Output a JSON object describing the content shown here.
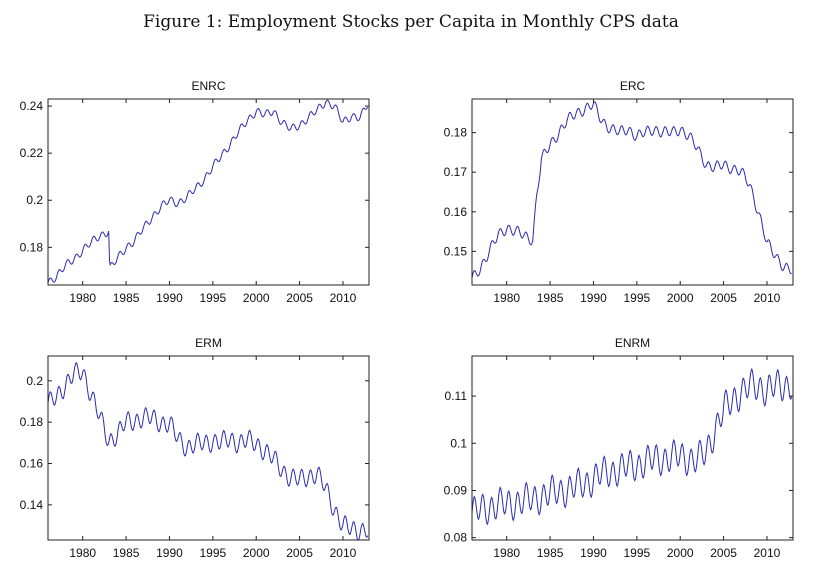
{
  "figure": {
    "title": "Figure 1: Employment Stocks per Capita in Monthly CPS data"
  },
  "chart_data": [
    {
      "type": "line",
      "title": "ENRC",
      "xlabel": "",
      "ylabel": "",
      "xlim": [
        1976,
        2013
      ],
      "ylim": [
        0.164,
        0.243
      ],
      "xticks": [
        1980,
        1985,
        1990,
        1995,
        2000,
        2005,
        2010
      ],
      "yticks": [
        0.18,
        0.2,
        0.22,
        0.24
      ],
      "ytick_labels": [
        "0.18",
        "0.2",
        "0.22",
        "0.24"
      ],
      "grid": false,
      "series": [
        {
          "color": "#2b2bb0",
          "x": [
            1976,
            1977,
            1978,
            1979,
            1980,
            1981,
            1982,
            1983,
            1983.1,
            1984,
            1985,
            1986,
            1987,
            1988,
            1989,
            1990,
            1991,
            1992,
            1993,
            1994,
            1995,
            1996,
            1997,
            1998,
            1999,
            2000,
            2001,
            2002,
            2003,
            2004,
            2005,
            2006,
            2007,
            2008,
            2009,
            2010,
            2011,
            2012,
            2012.9
          ],
          "y": [
            0.165,
            0.168,
            0.172,
            0.175,
            0.179,
            0.182,
            0.185,
            0.187,
            0.171,
            0.175,
            0.18,
            0.183,
            0.188,
            0.193,
            0.197,
            0.2,
            0.199,
            0.201,
            0.205,
            0.209,
            0.214,
            0.219,
            0.224,
            0.229,
            0.234,
            0.238,
            0.236,
            0.238,
            0.233,
            0.23,
            0.232,
            0.235,
            0.238,
            0.242,
            0.24,
            0.233,
            0.236,
            0.235,
            0.241
          ],
          "seasonal_amplitude": 0.0015
        }
      ]
    },
    {
      "type": "line",
      "title": "ERC",
      "xlabel": "",
      "ylabel": "",
      "xlim": [
        1976,
        2013
      ],
      "ylim": [
        0.1415,
        0.1885
      ],
      "xticks": [
        1980,
        1985,
        1990,
        1995,
        2000,
        2005,
        2010
      ],
      "yticks": [
        0.15,
        0.16,
        0.17,
        0.18
      ],
      "ytick_labels": [
        "0.15",
        "0.16",
        "0.17",
        "0.18"
      ],
      "grid": false,
      "series": [
        {
          "color": "#2b2bb0",
          "x": [
            1976,
            1977,
            1978,
            1979,
            1980,
            1981,
            1982,
            1983,
            1983.5,
            1984,
            1985,
            1986,
            1987,
            1988,
            1989,
            1990,
            1991,
            1992,
            1993,
            1994,
            1995,
            1996,
            1997,
            1998,
            1999,
            2000,
            2001,
            2002,
            2003,
            2004,
            2005,
            2006,
            2007,
            2008,
            2009,
            2010,
            2011,
            2012,
            2012.9
          ],
          "y": [
            0.143,
            0.146,
            0.15,
            0.154,
            0.156,
            0.155,
            0.154,
            0.153,
            0.165,
            0.173,
            0.177,
            0.18,
            0.183,
            0.185,
            0.186,
            0.187,
            0.183,
            0.181,
            0.18,
            0.181,
            0.179,
            0.18,
            0.181,
            0.18,
            0.18,
            0.181,
            0.179,
            0.176,
            0.172,
            0.171,
            0.172,
            0.171,
            0.17,
            0.167,
            0.16,
            0.152,
            0.149,
            0.146,
            0.145
          ],
          "seasonal_amplitude": 0.0012
        }
      ]
    },
    {
      "type": "line",
      "title": "ERM",
      "xlabel": "",
      "ylabel": "",
      "xlim": [
        1976,
        2013
      ],
      "ylim": [
        0.123,
        0.212
      ],
      "xticks": [
        1980,
        1985,
        1990,
        1995,
        2000,
        2005,
        2010
      ],
      "yticks": [
        0.14,
        0.16,
        0.18,
        0.2
      ],
      "ytick_labels": [
        "0.14",
        "0.16",
        "0.18",
        "0.2"
      ],
      "grid": false,
      "series": [
        {
          "color": "#2b2bb0",
          "x": [
            1976,
            1977,
            1978,
            1979,
            1980,
            1981,
            1982,
            1983,
            1984,
            1985,
            1986,
            1987,
            1988,
            1989,
            1990,
            1991,
            1992,
            1993,
            1994,
            1995,
            1996,
            1997,
            1998,
            1999,
            2000,
            2001,
            2002,
            2003,
            2004,
            2005,
            2006,
            2007,
            2008,
            2009,
            2010,
            2011,
            2012,
            2012.9
          ],
          "y": [
            0.188,
            0.193,
            0.198,
            0.203,
            0.205,
            0.193,
            0.182,
            0.171,
            0.174,
            0.18,
            0.181,
            0.182,
            0.182,
            0.18,
            0.179,
            0.172,
            0.168,
            0.169,
            0.17,
            0.171,
            0.17,
            0.172,
            0.17,
            0.171,
            0.17,
            0.166,
            0.162,
            0.157,
            0.153,
            0.152,
            0.154,
            0.155,
            0.148,
            0.138,
            0.13,
            0.128,
            0.128,
            0.128
          ],
          "seasonal_amplitude": 0.004
        }
      ]
    },
    {
      "type": "line",
      "title": "ENRM",
      "xlabel": "",
      "ylabel": "",
      "xlim": [
        1976,
        2013
      ],
      "ylim": [
        0.0795,
        0.1185
      ],
      "xticks": [
        1980,
        1985,
        1990,
        1995,
        2000,
        2005,
        2010
      ],
      "yticks": [
        0.08,
        0.09,
        0.1,
        0.11
      ],
      "ytick_labels": [
        "0.08",
        "0.09",
        "0.1",
        "0.11"
      ],
      "grid": false,
      "series": [
        {
          "color": "#2b2bb0",
          "x": [
            1976,
            1977,
            1978,
            1979,
            1980,
            1981,
            1982,
            1983,
            1984,
            1985,
            1986,
            1987,
            1988,
            1989,
            1990,
            1991,
            1992,
            1993,
            1994,
            1995,
            1996,
            1997,
            1998,
            1999,
            2000,
            2001,
            2002,
            2003,
            2004,
            2005,
            2006,
            2007,
            2008,
            2009,
            2010,
            2011,
            2012,
            2012.9
          ],
          "y": [
            0.085,
            0.086,
            0.0865,
            0.087,
            0.087,
            0.0875,
            0.0878,
            0.0882,
            0.0888,
            0.0893,
            0.0898,
            0.0903,
            0.0908,
            0.0915,
            0.0925,
            0.0935,
            0.094,
            0.0945,
            0.095,
            0.0955,
            0.096,
            0.0965,
            0.0968,
            0.097,
            0.0972,
            0.0968,
            0.0965,
            0.098,
            0.103,
            0.107,
            0.109,
            0.111,
            0.112,
            0.112,
            0.1115,
            0.112,
            0.112,
            0.113
          ],
          "seasonal_amplitude": 0.0028
        }
      ]
    }
  ]
}
